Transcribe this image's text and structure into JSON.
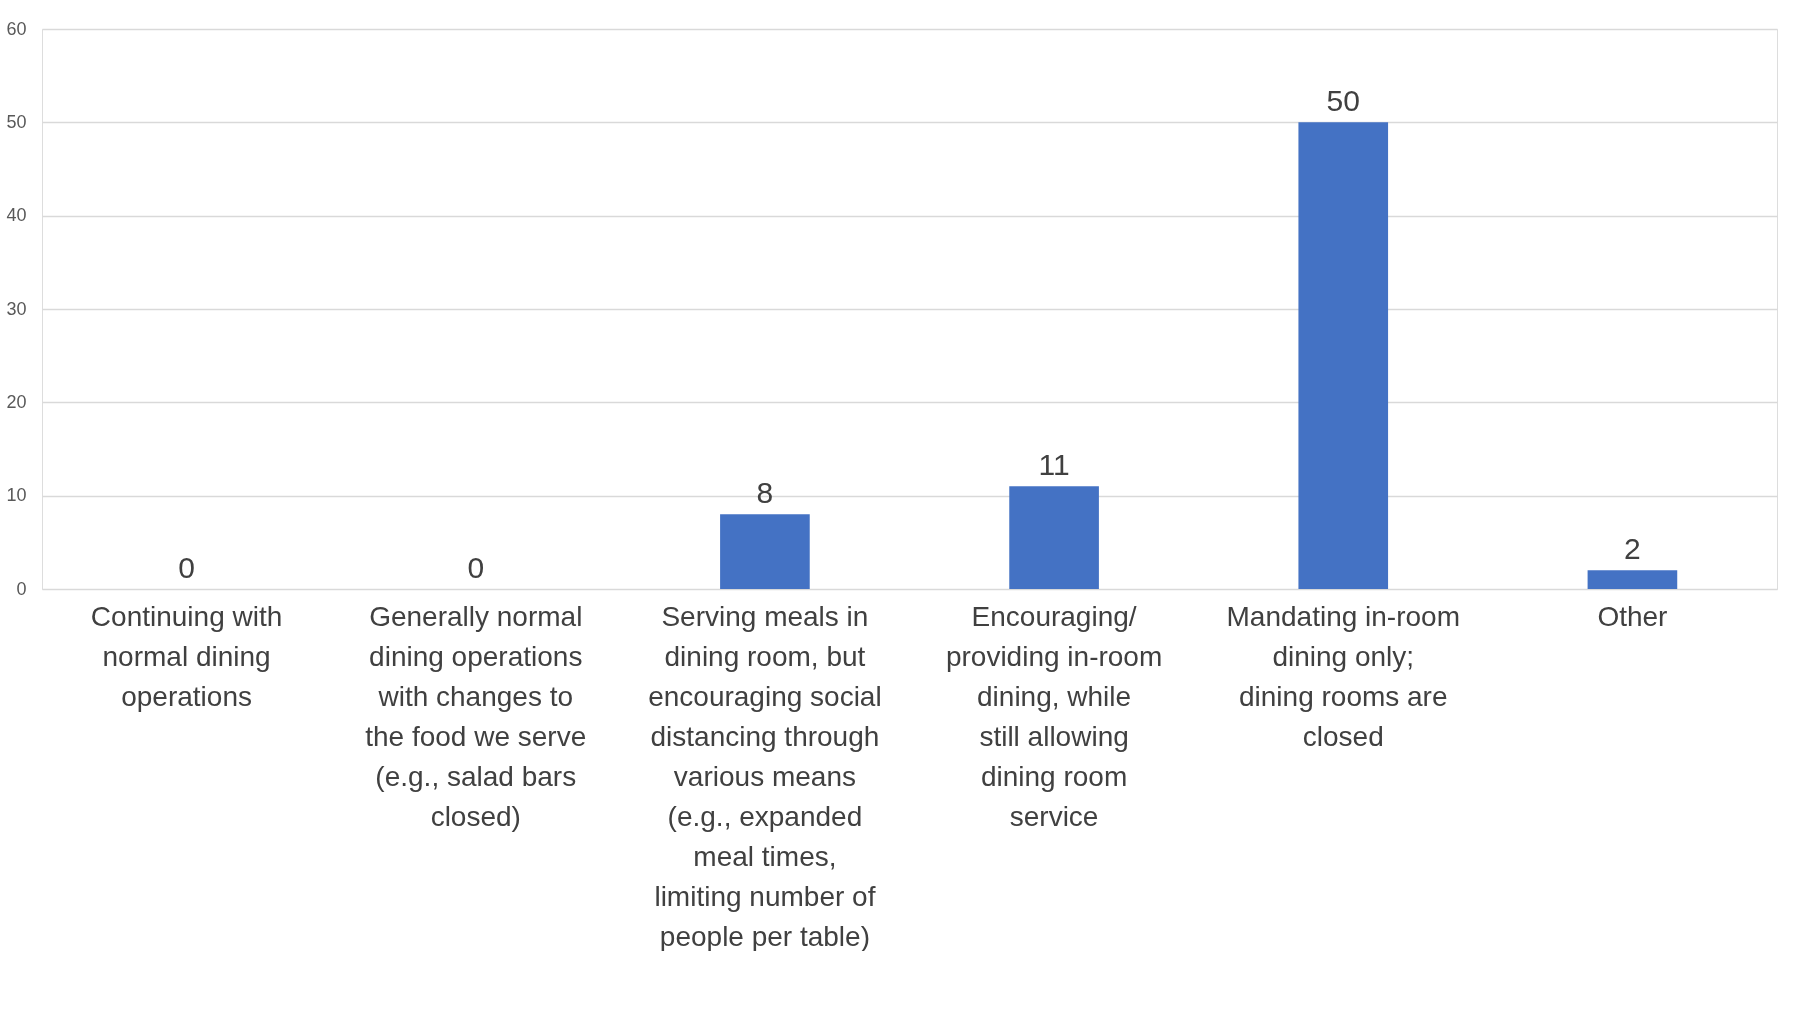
{
  "chart_data": {
    "type": "bar",
    "categories": [
      "Continuing with normal dining operations",
      "Generally normal dining operations with changes to the food we serve (e.g., salad bars closed)",
      "Serving meals in dining room, but encouraging social distancing through various means (e.g., expanded meal times, limiting number of people per table)",
      "Encouraging/ providing in-room dining, while still allowing dining room service",
      "Mandating in-room dining only; dining rooms are closed",
      "Other"
    ],
    "values": [
      0,
      0,
      8,
      11,
      50,
      2
    ],
    "color": "#4472c4",
    "ylim": [
      0,
      60
    ],
    "yticks": [
      0,
      10,
      20,
      30,
      40,
      50,
      60
    ],
    "grid": "y",
    "data_labels": true
  }
}
